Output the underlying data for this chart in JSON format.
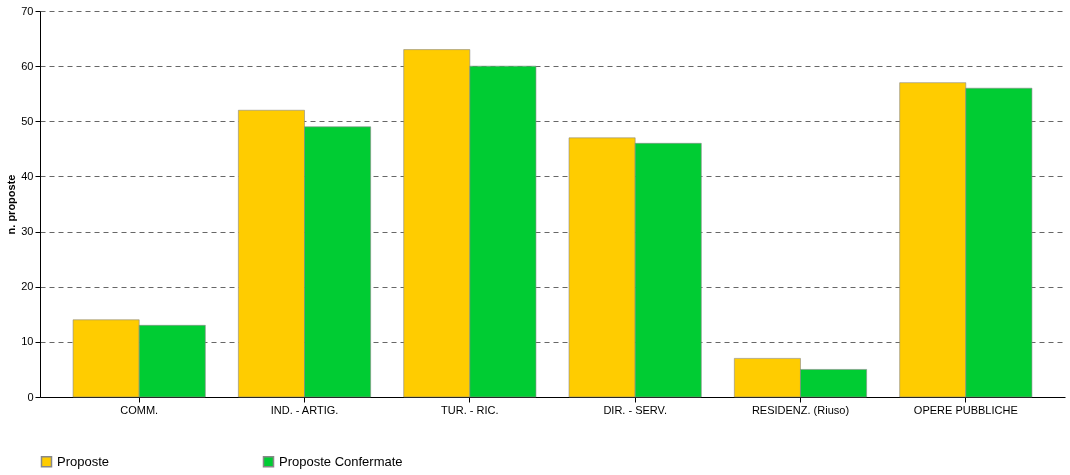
{
  "chart_data": {
    "type": "bar",
    "ylabel": "n. proposte",
    "categories": [
      "COMM.",
      "IND. - ARTIG.",
      "TUR. - RIC.",
      "DIR. - SERV.",
      "RESIDENZ. (Riuso)",
      "OPERE PUBBLICHE"
    ],
    "series": [
      {
        "name": "Proposte",
        "color": "#ffcc00",
        "values": [
          14,
          52,
          63,
          47,
          7,
          57
        ]
      },
      {
        "name": "Proposte Confermate",
        "color": "#00cc33",
        "values": [
          13,
          49,
          60,
          46,
          5,
          56
        ]
      }
    ],
    "ylim": [
      0,
      70
    ],
    "yticks": [
      0,
      10,
      20,
      30,
      40,
      50,
      60,
      70
    ],
    "grid": "y",
    "legend": "bottom"
  }
}
